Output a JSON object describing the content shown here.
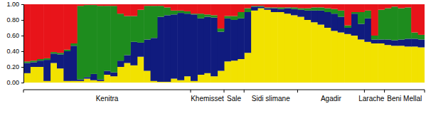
{
  "chart_data": {
    "type": "bar",
    "stacked": true,
    "categories": [
      null,
      null,
      null,
      null,
      null,
      null,
      null,
      null,
      null,
      null,
      null,
      null,
      null,
      null,
      null,
      null,
      null,
      null,
      null,
      null,
      null,
      null,
      null,
      null,
      null,
      null,
      null,
      null,
      null,
      null,
      null,
      null,
      null,
      null,
      null,
      null,
      null,
      null,
      null,
      null,
      null,
      null,
      null,
      null,
      null,
      null,
      null,
      null,
      null,
      null,
      null,
      null,
      null,
      null,
      null,
      null,
      null,
      null,
      null,
      null
    ],
    "ylim": [
      0,
      1
    ],
    "yticks": [
      {
        "value": 0,
        "label": "0.00"
      },
      {
        "value": 0.2,
        "label": "0.20"
      },
      {
        "value": 0.4,
        "label": "0.40"
      },
      {
        "value": 0.6,
        "label": "0.60"
      },
      {
        "value": 0.8,
        "label": "0.80"
      },
      {
        "value": 1,
        "label": "1.00"
      }
    ],
    "groups": [
      {
        "name": "Kenitra",
        "count": 25
      },
      {
        "name": "Khemisset",
        "count": 5
      },
      {
        "name": "Sale",
        "count": 3
      },
      {
        "name": "Sidi slimane",
        "count": 8
      },
      {
        "name": "Agadir",
        "count": 10
      },
      {
        "name": "Larache",
        "count": 3
      },
      {
        "name": "Beni Mellal",
        "count": 6
      }
    ],
    "series": [
      {
        "color": "#f2e200",
        "values": [
          0.12,
          0.2,
          0.2,
          0.02,
          0.25,
          0.18,
          0.02,
          0.02,
          0.02,
          0.05,
          0.03,
          0.02,
          0.1,
          0.08,
          0.2,
          0.25,
          0.22,
          0.33,
          0.15,
          0.02,
          0.01,
          0.01,
          0.05,
          0.03,
          0.08,
          0.02,
          0.1,
          0.12,
          0.08,
          0.15,
          0.27,
          0.28,
          0.3,
          0.38,
          0.92,
          0.95,
          0.93,
          0.9,
          0.9,
          0.88,
          0.86,
          0.84,
          0.8,
          0.77,
          0.74,
          0.7,
          0.66,
          0.64,
          0.62,
          0.6,
          0.55,
          0.52,
          0.5,
          0.5,
          0.48,
          0.47,
          0.47,
          0.46,
          0.46,
          0.45
        ]
      },
      {
        "color": "#101b7e",
        "values": [
          0.13,
          0.06,
          0.08,
          0.27,
          0.12,
          0.18,
          0.38,
          0.45,
          0.02,
          0.02,
          0.08,
          0.02,
          0.05,
          0.05,
          0.08,
          0.1,
          0.3,
          0.18,
          0.4,
          0.55,
          0.83,
          0.85,
          0.82,
          0.86,
          0.8,
          0.85,
          0.72,
          0.72,
          0.75,
          0.5,
          0.55,
          0.52,
          0.52,
          0.52,
          0.05,
          0.02,
          0.02,
          0.05,
          0.04,
          0.07,
          0.08,
          0.09,
          0.12,
          0.15,
          0.18,
          0.2,
          0.22,
          0.2,
          0.08,
          0.28,
          0.2,
          0.3,
          0.05,
          0.05,
          0.07,
          0.07,
          0.08,
          0.1,
          0.1,
          0.1
        ]
      },
      {
        "color": "#1e8c1e",
        "values": [
          0.02,
          0.02,
          0.02,
          0.02,
          0.02,
          0.02,
          0.02,
          0.03,
          0.94,
          0.92,
          0.88,
          0.94,
          0.83,
          0.85,
          0.6,
          0.5,
          0.33,
          0.42,
          0.43,
          0.41,
          0.14,
          0.1,
          0.05,
          0.03,
          0.03,
          0.01,
          0.06,
          0.03,
          0.03,
          0.04,
          0.03,
          0.05,
          0.08,
          0.05,
          0.01,
          0.01,
          0.01,
          0.01,
          0.02,
          0.01,
          0.02,
          0.02,
          0.03,
          0.04,
          0.04,
          0.05,
          0.06,
          0.08,
          0.03,
          0.02,
          0.15,
          0.1,
          0.05,
          0.38,
          0.4,
          0.43,
          0.4,
          0.4,
          0.08,
          0.06
        ]
      },
      {
        "color": "#e8141a",
        "values": [
          0.73,
          0.72,
          0.7,
          0.69,
          0.61,
          0.62,
          0.58,
          0.5,
          0.02,
          0.01,
          0.01,
          0.02,
          0.02,
          0.02,
          0.12,
          0.15,
          0.15,
          0.07,
          0.02,
          0.02,
          0.02,
          0.04,
          0.08,
          0.08,
          0.09,
          0.12,
          0.12,
          0.13,
          0.14,
          0.31,
          0.15,
          0.15,
          0.1,
          0.05,
          0.02,
          0.02,
          0.04,
          0.04,
          0.04,
          0.04,
          0.04,
          0.05,
          0.05,
          0.04,
          0.04,
          0.05,
          0.06,
          0.08,
          0.27,
          0.1,
          0.1,
          0.08,
          0.4,
          0.07,
          0.05,
          0.03,
          0.05,
          0.04,
          0.36,
          0.39
        ]
      }
    ]
  }
}
